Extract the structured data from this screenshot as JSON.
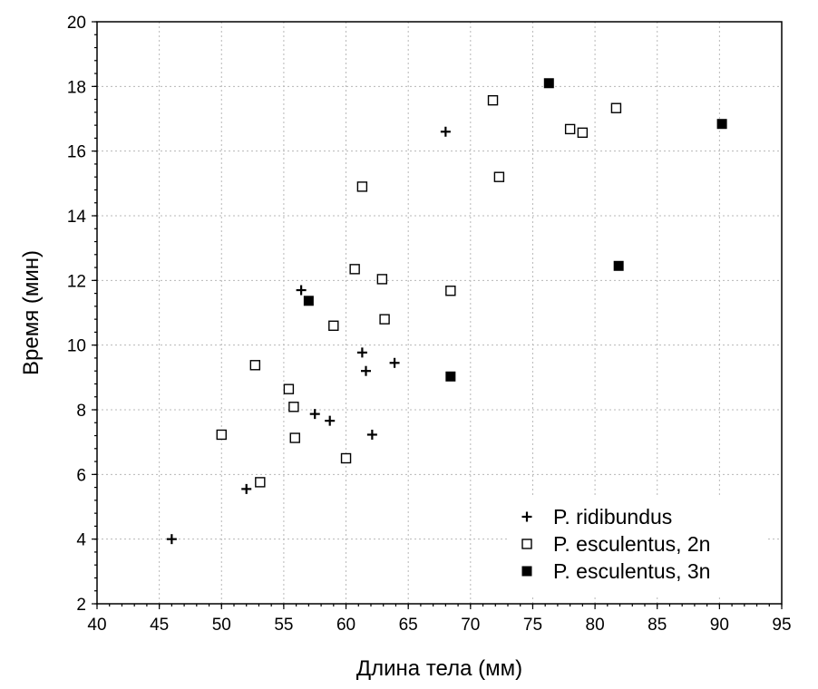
{
  "chart_data": {
    "type": "scatter",
    "title": "",
    "xlabel": "Длина тела (мм)",
    "ylabel": "Время (мин)",
    "xlim": [
      40,
      95
    ],
    "ylim": [
      2,
      20
    ],
    "xticks": [
      40,
      45,
      50,
      55,
      60,
      65,
      70,
      75,
      80,
      85,
      90,
      95
    ],
    "yticks": [
      2,
      4,
      6,
      8,
      10,
      12,
      14,
      16,
      18,
      20
    ],
    "x_minor_step": 1,
    "y_minor_step": 0.4,
    "grid": true,
    "legend_position": "bottom-right",
    "series": [
      {
        "name": "P. ridibundus",
        "marker": "plus",
        "color": "#000000",
        "points": [
          [
            46.0,
            4.0
          ],
          [
            52.0,
            5.55
          ],
          [
            56.4,
            11.7
          ],
          [
            57.5,
            7.87
          ],
          [
            58.7,
            7.66
          ],
          [
            61.3,
            9.77
          ],
          [
            61.6,
            9.2
          ],
          [
            62.1,
            7.23
          ],
          [
            63.9,
            9.45
          ],
          [
            68.0,
            16.6
          ]
        ]
      },
      {
        "name": "P. esculentus, 2n",
        "marker": "open-square",
        "color": "#000000",
        "points": [
          [
            50.0,
            7.23
          ],
          [
            52.7,
            9.38
          ],
          [
            53.1,
            5.76
          ],
          [
            55.4,
            8.64
          ],
          [
            55.8,
            8.09
          ],
          [
            55.9,
            7.13
          ],
          [
            59.0,
            10.6
          ],
          [
            60.0,
            6.5
          ],
          [
            60.7,
            12.35
          ],
          [
            61.3,
            14.9
          ],
          [
            62.9,
            12.04
          ],
          [
            63.1,
            10.8
          ],
          [
            68.4,
            11.68
          ],
          [
            71.8,
            17.57
          ],
          [
            72.3,
            15.2
          ],
          [
            78.0,
            16.68
          ],
          [
            79.0,
            16.57
          ],
          [
            81.7,
            17.33
          ]
        ]
      },
      {
        "name": "P. esculentus, 3n",
        "marker": "filled-square",
        "color": "#000000",
        "points": [
          [
            57.0,
            11.37
          ],
          [
            68.4,
            9.03
          ],
          [
            76.3,
            18.1
          ],
          [
            81.9,
            12.45
          ],
          [
            90.2,
            16.84
          ]
        ]
      }
    ]
  }
}
